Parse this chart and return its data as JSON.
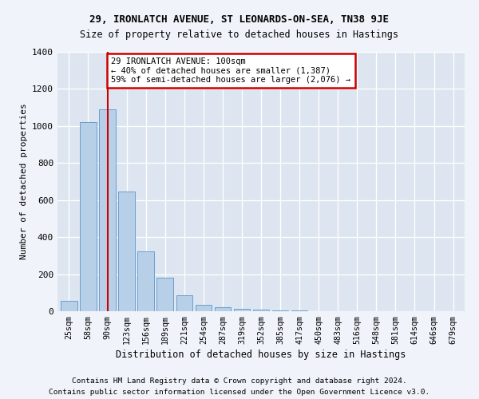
{
  "title1": "29, IRONLATCH AVENUE, ST LEONARDS-ON-SEA, TN38 9JE",
  "title2": "Size of property relative to detached houses in Hastings",
  "xlabel": "Distribution of detached houses by size in Hastings",
  "ylabel": "Number of detached properties",
  "categories": [
    "25sqm",
    "58sqm",
    "90sqm",
    "123sqm",
    "156sqm",
    "189sqm",
    "221sqm",
    "254sqm",
    "287sqm",
    "319sqm",
    "352sqm",
    "385sqm",
    "417sqm",
    "450sqm",
    "483sqm",
    "516sqm",
    "548sqm",
    "581sqm",
    "614sqm",
    "646sqm",
    "679sqm"
  ],
  "values": [
    55,
    1020,
    1090,
    645,
    325,
    180,
    88,
    35,
    20,
    15,
    10,
    5,
    3,
    2,
    1,
    1,
    1,
    1,
    0,
    0,
    0
  ],
  "bar_color": "#b8cfe8",
  "bar_edge_color": "#6a9fd0",
  "vline_x": 2,
  "vline_color": "#cc0000",
  "annotation_text": "29 IRONLATCH AVENUE: 100sqm\n← 40% of detached houses are smaller (1,387)\n59% of semi-detached houses are larger (2,076) →",
  "annotation_box_color": "#ffffff",
  "annotation_box_edge": "#cc0000",
  "footer1": "Contains HM Land Registry data © Crown copyright and database right 2024.",
  "footer2": "Contains public sector information licensed under the Open Government Licence v3.0.",
  "ylim": [
    0,
    1400
  ],
  "yticks": [
    0,
    200,
    400,
    600,
    800,
    1000,
    1200,
    1400
  ],
  "bg_color": "#f0f4fa",
  "plot_bg": "#dde6f0"
}
